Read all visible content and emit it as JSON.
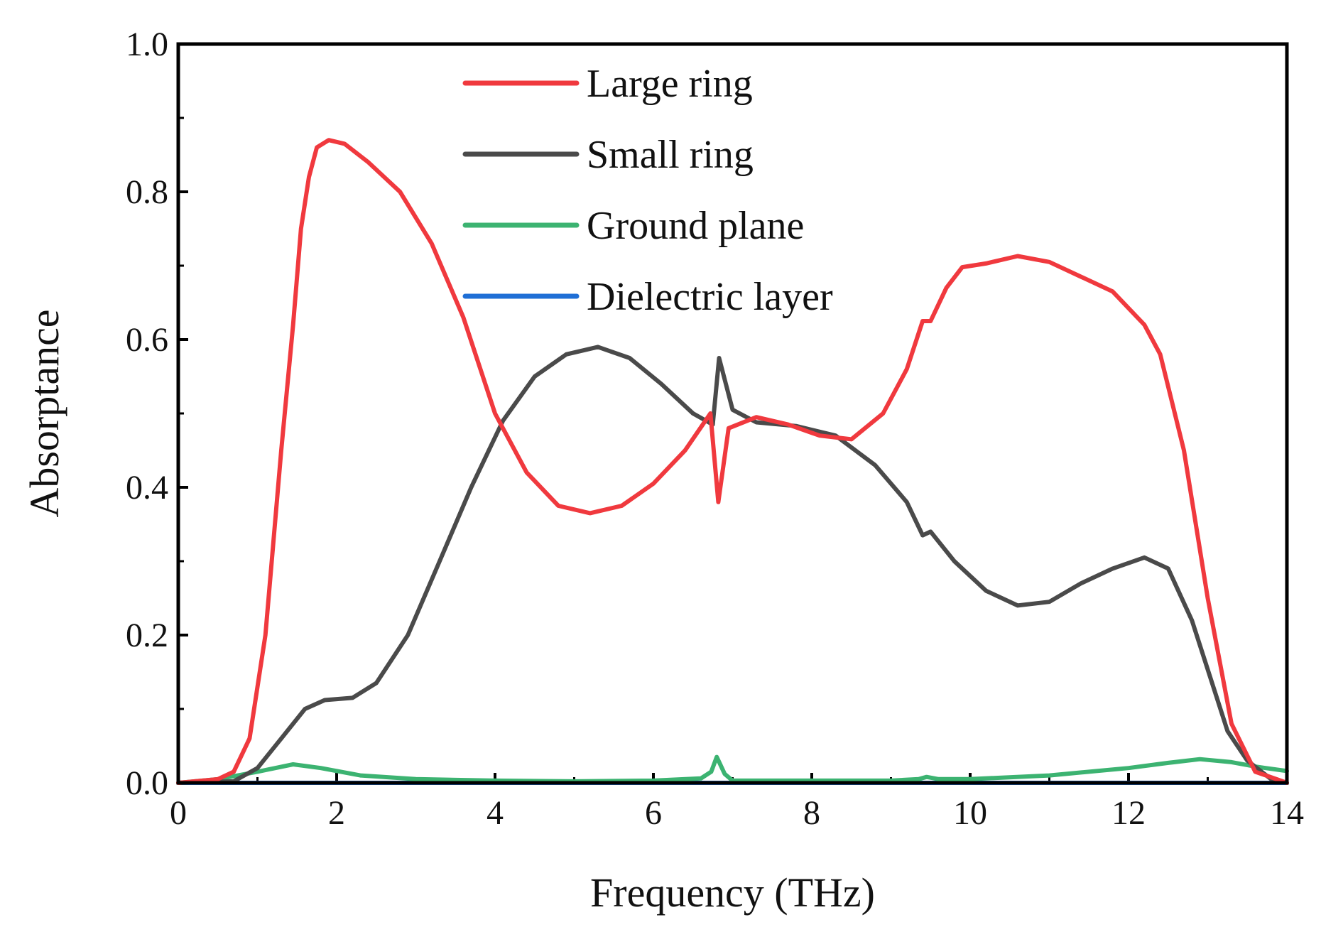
{
  "chart_data": {
    "type": "line",
    "title": "",
    "xlabel": "Frequency (THz)",
    "ylabel": "Absorptance",
    "xlim": [
      0,
      14
    ],
    "ylim": [
      0,
      1.0
    ],
    "xticks": [
      "0",
      "2",
      "4",
      "6",
      "8",
      "10",
      "12",
      "14"
    ],
    "yticks": [
      "0.0",
      "0.2",
      "0.4",
      "0.6",
      "0.8",
      "1.0"
    ],
    "xtick_values": [
      0,
      2,
      4,
      6,
      8,
      10,
      12,
      14
    ],
    "ytick_values": [
      0.0,
      0.2,
      0.4,
      0.6,
      0.8,
      1.0
    ],
    "legend_position": "top-center",
    "series": [
      {
        "name": "Large ring",
        "color": "#f0393e",
        "points": [
          [
            0,
            0.0
          ],
          [
            0.5,
            0.005
          ],
          [
            0.7,
            0.015
          ],
          [
            0.9,
            0.06
          ],
          [
            1.1,
            0.2
          ],
          [
            1.3,
            0.45
          ],
          [
            1.45,
            0.62
          ],
          [
            1.55,
            0.75
          ],
          [
            1.65,
            0.82
          ],
          [
            1.75,
            0.86
          ],
          [
            1.9,
            0.87
          ],
          [
            2.1,
            0.865
          ],
          [
            2.4,
            0.84
          ],
          [
            2.8,
            0.8
          ],
          [
            3.2,
            0.73
          ],
          [
            3.6,
            0.63
          ],
          [
            4.0,
            0.5
          ],
          [
            4.4,
            0.42
          ],
          [
            4.8,
            0.375
          ],
          [
            5.2,
            0.365
          ],
          [
            5.6,
            0.375
          ],
          [
            6.0,
            0.405
          ],
          [
            6.4,
            0.45
          ],
          [
            6.72,
            0.5
          ],
          [
            6.82,
            0.38
          ],
          [
            6.95,
            0.48
          ],
          [
            7.3,
            0.495
          ],
          [
            7.7,
            0.485
          ],
          [
            8.1,
            0.47
          ],
          [
            8.5,
            0.465
          ],
          [
            8.9,
            0.5
          ],
          [
            9.2,
            0.56
          ],
          [
            9.4,
            0.625
          ],
          [
            9.5,
            0.625
          ],
          [
            9.7,
            0.67
          ],
          [
            9.9,
            0.698
          ],
          [
            10.2,
            0.703
          ],
          [
            10.6,
            0.713
          ],
          [
            11.0,
            0.705
          ],
          [
            11.4,
            0.685
          ],
          [
            11.8,
            0.665
          ],
          [
            12.2,
            0.62
          ],
          [
            12.4,
            0.58
          ],
          [
            12.7,
            0.45
          ],
          [
            13.0,
            0.25
          ],
          [
            13.3,
            0.08
          ],
          [
            13.6,
            0.015
          ],
          [
            14.0,
            0.0
          ]
        ]
      },
      {
        "name": "Small ring",
        "color": "#4a4a4a",
        "points": [
          [
            0,
            0.0
          ],
          [
            0.7,
            0.002
          ],
          [
            1.0,
            0.02
          ],
          [
            1.3,
            0.06
          ],
          [
            1.6,
            0.1
          ],
          [
            1.85,
            0.112
          ],
          [
            2.2,
            0.115
          ],
          [
            2.5,
            0.135
          ],
          [
            2.9,
            0.2
          ],
          [
            3.3,
            0.3
          ],
          [
            3.7,
            0.4
          ],
          [
            4.1,
            0.49
          ],
          [
            4.5,
            0.55
          ],
          [
            4.9,
            0.58
          ],
          [
            5.3,
            0.59
          ],
          [
            5.7,
            0.575
          ],
          [
            6.1,
            0.54
          ],
          [
            6.5,
            0.5
          ],
          [
            6.75,
            0.485
          ],
          [
            6.83,
            0.575
          ],
          [
            7.0,
            0.505
          ],
          [
            7.3,
            0.488
          ],
          [
            7.8,
            0.483
          ],
          [
            8.3,
            0.47
          ],
          [
            8.8,
            0.43
          ],
          [
            9.2,
            0.38
          ],
          [
            9.4,
            0.335
          ],
          [
            9.5,
            0.34
          ],
          [
            9.8,
            0.3
          ],
          [
            10.2,
            0.26
          ],
          [
            10.6,
            0.24
          ],
          [
            11.0,
            0.245
          ],
          [
            11.4,
            0.27
          ],
          [
            11.8,
            0.29
          ],
          [
            12.2,
            0.305
          ],
          [
            12.5,
            0.29
          ],
          [
            12.8,
            0.22
          ],
          [
            13.1,
            0.12
          ],
          [
            13.25,
            0.07
          ],
          [
            13.5,
            0.03
          ],
          [
            13.8,
            0.005
          ],
          [
            14.0,
            0.0
          ]
        ]
      },
      {
        "name": "Ground plane",
        "color": "#3cb371",
        "points": [
          [
            0,
            0.0
          ],
          [
            0.5,
            0.005
          ],
          [
            1.0,
            0.015
          ],
          [
            1.45,
            0.025
          ],
          [
            1.8,
            0.02
          ],
          [
            2.3,
            0.01
          ],
          [
            3.0,
            0.005
          ],
          [
            4.0,
            0.003
          ],
          [
            5.0,
            0.002
          ],
          [
            6.0,
            0.003
          ],
          [
            6.6,
            0.006
          ],
          [
            6.73,
            0.015
          ],
          [
            6.8,
            0.035
          ],
          [
            6.9,
            0.012
          ],
          [
            7.0,
            0.003
          ],
          [
            8.0,
            0.003
          ],
          [
            9.0,
            0.003
          ],
          [
            9.35,
            0.005
          ],
          [
            9.45,
            0.008
          ],
          [
            9.6,
            0.005
          ],
          [
            10.0,
            0.005
          ],
          [
            11.0,
            0.01
          ],
          [
            12.0,
            0.02
          ],
          [
            12.5,
            0.027
          ],
          [
            12.9,
            0.032
          ],
          [
            13.3,
            0.028
          ],
          [
            13.6,
            0.022
          ],
          [
            14.0,
            0.016
          ]
        ]
      },
      {
        "name": "Dielectric layer",
        "color": "#1f6fd6",
        "points": [
          [
            0,
            0.0
          ],
          [
            14,
            0.0
          ]
        ]
      }
    ]
  }
}
